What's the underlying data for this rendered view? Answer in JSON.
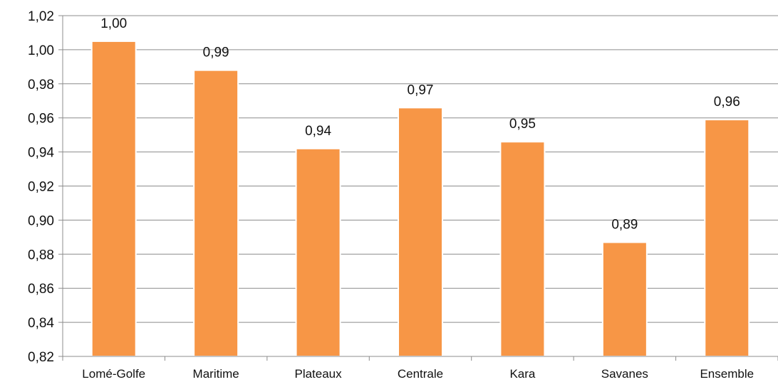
{
  "chart_data": {
    "type": "bar",
    "categories": [
      "Lomé-Golfe",
      "Maritime",
      "Plateaux",
      "Centrale",
      "Kara",
      "Savanes",
      "Ensemble"
    ],
    "values": [
      1.005,
      0.988,
      0.942,
      0.966,
      0.946,
      0.887,
      0.959
    ],
    "data_labels": [
      "1,00",
      "0,99",
      "0,94",
      "0,97",
      "0,95",
      "0,89",
      "0,96"
    ],
    "ylim": [
      0.82,
      1.02
    ],
    "yticks": [
      "0,82",
      "0,84",
      "0,86",
      "0,88",
      "0,90",
      "0,92",
      "0,94",
      "0,96",
      "0,98",
      "1,00",
      "1,02"
    ],
    "ytick_values": [
      0.82,
      0.84,
      0.86,
      0.88,
      0.9,
      0.92,
      0.94,
      0.96,
      0.98,
      1.0,
      1.02
    ],
    "title": "",
    "xlabel": "",
    "ylabel": "",
    "grid": true,
    "legend": "none",
    "colors": {
      "bar": "#f79646",
      "bar_edge": "#ffffff",
      "grid": "#8c8c8c",
      "axis": "#8c8c8c"
    }
  }
}
